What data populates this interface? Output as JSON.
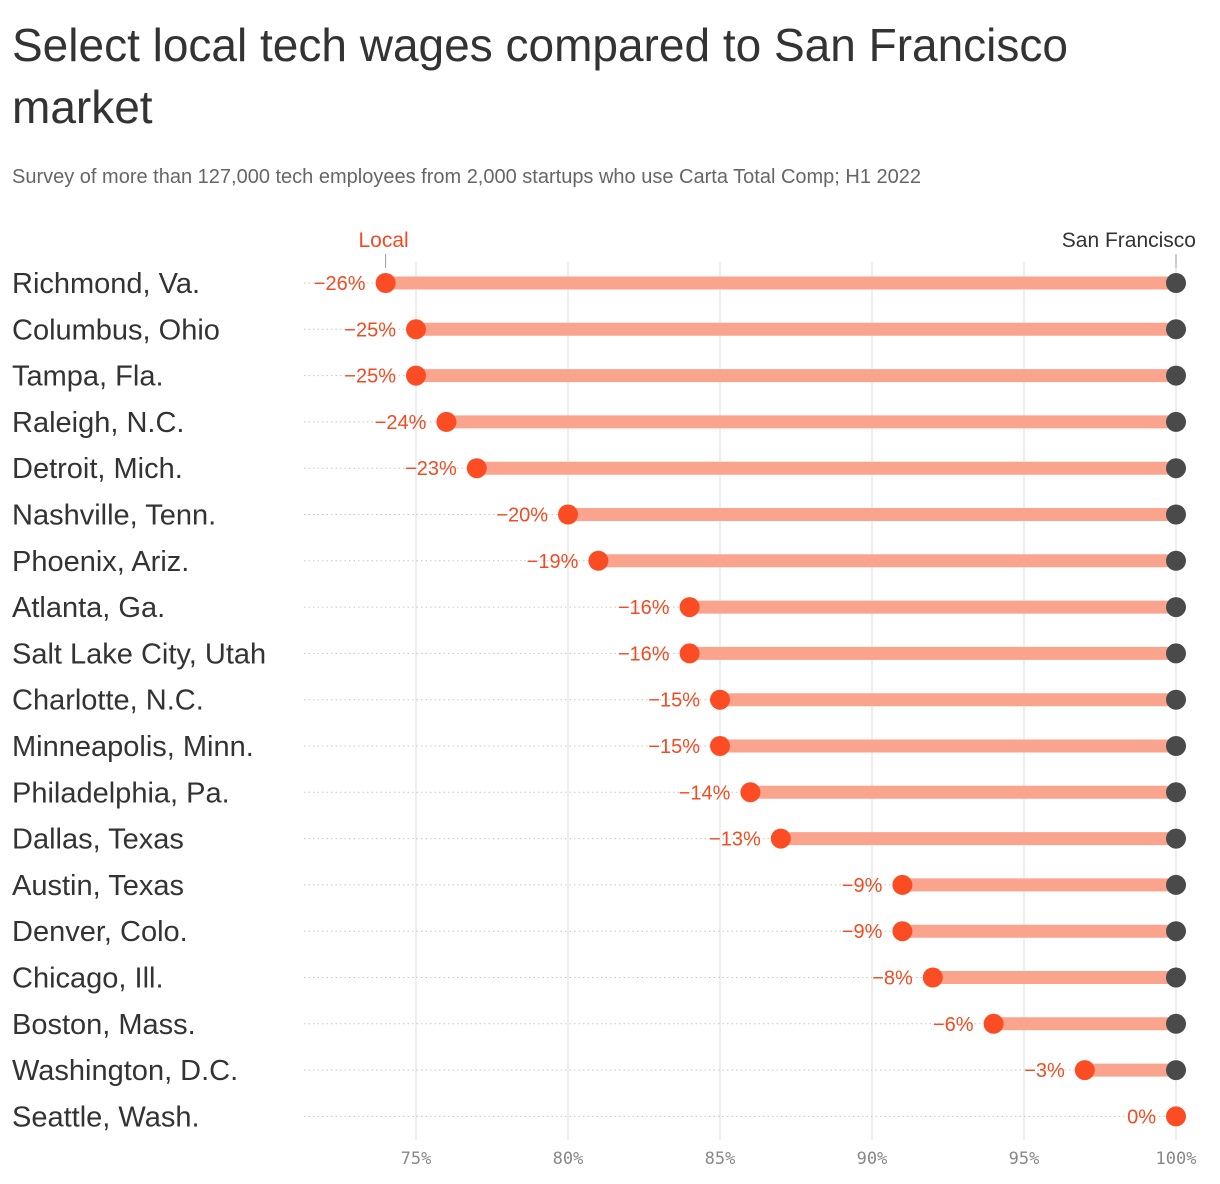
{
  "header": {
    "title": "Select local tech wages compared to San Francisco market",
    "subtitle": "Survey of more than 127,000 tech employees from 2,000 startups who use Carta Total Comp; H1 2022"
  },
  "colors": {
    "local_dot": "#fc4c23",
    "bar": "#fba48d",
    "sf_dot": "#4a4a4a",
    "gridline": "#dddddd",
    "local_label": "#f04c23"
  },
  "chart_data": {
    "type": "dumbbell",
    "title": "Select local tech wages compared to San Francisco market",
    "subtitle": "Survey of more than 127,000 tech employees from 2,000 startups who use Carta Total Comp; H1 2022",
    "series_labels": [
      "Local",
      "San Francisco"
    ],
    "xlim": [
      71,
      100
    ],
    "xticks": [
      75,
      80,
      85,
      90,
      95,
      100
    ],
    "xtick_labels": [
      "75%",
      "80%",
      "85%",
      "90%",
      "95%",
      "100%"
    ],
    "rows": [
      {
        "city": "Richmond, Va.",
        "local": 74,
        "sf": 100,
        "diff_label": "−26%"
      },
      {
        "city": "Columbus, Ohio",
        "local": 75,
        "sf": 100,
        "diff_label": "−25%"
      },
      {
        "city": "Tampa, Fla.",
        "local": 75,
        "sf": 100,
        "diff_label": "−25%"
      },
      {
        "city": "Raleigh, N.C.",
        "local": 76,
        "sf": 100,
        "diff_label": "−24%"
      },
      {
        "city": "Detroit, Mich.",
        "local": 77,
        "sf": 100,
        "diff_label": "−23%"
      },
      {
        "city": "Nashville, Tenn.",
        "local": 80,
        "sf": 100,
        "diff_label": "−20%"
      },
      {
        "city": "Phoenix, Ariz.",
        "local": 81,
        "sf": 100,
        "diff_label": "−19%"
      },
      {
        "city": "Atlanta, Ga.",
        "local": 84,
        "sf": 100,
        "diff_label": "−16%"
      },
      {
        "city": "Salt Lake City, Utah",
        "local": 84,
        "sf": 100,
        "diff_label": "−16%"
      },
      {
        "city": "Charlotte, N.C.",
        "local": 85,
        "sf": 100,
        "diff_label": "−15%"
      },
      {
        "city": "Minneapolis, Minn.",
        "local": 85,
        "sf": 100,
        "diff_label": "−15%"
      },
      {
        "city": "Philadelphia, Pa.",
        "local": 86,
        "sf": 100,
        "diff_label": "−14%"
      },
      {
        "city": "Dallas, Texas",
        "local": 87,
        "sf": 100,
        "diff_label": "−13%"
      },
      {
        "city": "Austin, Texas",
        "local": 91,
        "sf": 100,
        "diff_label": "−9%"
      },
      {
        "city": "Denver, Colo.",
        "local": 91,
        "sf": 100,
        "diff_label": "−9%"
      },
      {
        "city": "Chicago, Ill.",
        "local": 92,
        "sf": 100,
        "diff_label": "−8%"
      },
      {
        "city": "Boston, Mass.",
        "local": 94,
        "sf": 100,
        "diff_label": "−6%"
      },
      {
        "city": "Washington, D.C.",
        "local": 97,
        "sf": 100,
        "diff_label": "−3%"
      },
      {
        "city": "Seattle, Wash.",
        "local": 100,
        "sf": 100,
        "diff_label": "0%"
      }
    ]
  }
}
